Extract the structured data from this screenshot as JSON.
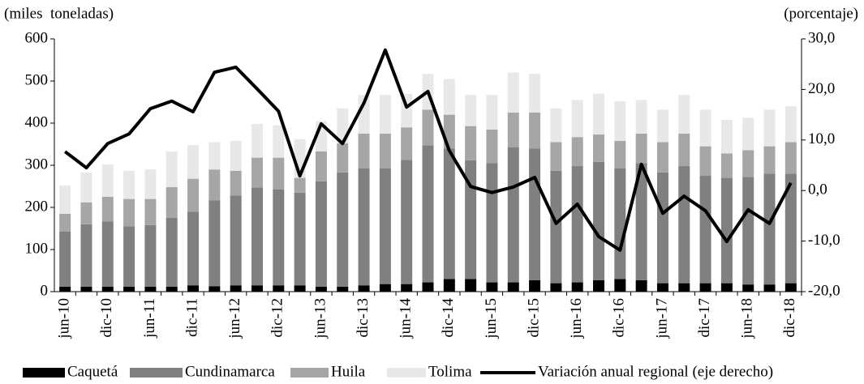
{
  "chart_data": {
    "type": "stacked-bar-line",
    "y_label": "(miles  toneladas)",
    "y2_label": "(porcentaje)",
    "categories": [
      "jun-10",
      null,
      "dic-10",
      null,
      "jun-11",
      null,
      "dic-11",
      null,
      "jun-12",
      null,
      "dic-12",
      null,
      "jun-13",
      null,
      "dic-13",
      null,
      "jun-14",
      null,
      "dic-14",
      null,
      "jun-15",
      null,
      "dic-15",
      null,
      "jun-16",
      null,
      "dic-16",
      null,
      "jun-17",
      null,
      "dic-17",
      null,
      "jun-18",
      null,
      "dic-18"
    ],
    "series": [
      {
        "name": "Caquetá",
        "color": "#000000",
        "values": [
          12,
          12,
          12,
          12,
          12,
          12,
          15,
          13,
          15,
          15,
          15,
          15,
          12,
          12,
          15,
          18,
          18,
          22,
          30,
          30,
          22,
          22,
          27,
          20,
          22,
          27,
          30,
          27,
          20,
          20,
          20,
          20,
          17,
          17,
          20
        ]
      },
      {
        "name": "Cundinamarca",
        "color": "#808080",
        "values": [
          131,
          148,
          155,
          143,
          146,
          163,
          175,
          204,
          213,
          232,
          228,
          220,
          250,
          271,
          278,
          275,
          295,
          325,
          310,
          282,
          283,
          321,
          313,
          267,
          276,
          281,
          263,
          278,
          263,
          278,
          255,
          250,
          255,
          263,
          260
        ]
      },
      {
        "name": "Huila",
        "color": "#a6a6a6",
        "values": [
          42,
          52,
          58,
          65,
          62,
          73,
          78,
          73,
          59,
          71,
          75,
          35,
          71,
          69,
          82,
          82,
          77,
          85,
          80,
          81,
          80,
          82,
          85,
          68,
          69,
          65,
          65,
          70,
          72,
          77,
          70,
          58,
          64,
          65,
          75
        ]
      },
      {
        "name": "Tolima",
        "color": "#e8e8e8",
        "values": [
          67,
          71,
          77,
          67,
          70,
          85,
          80,
          65,
          71,
          80,
          77,
          92,
          72,
          83,
          92,
          92,
          80,
          85,
          85,
          74,
          82,
          95,
          92,
          80,
          88,
          97,
          94,
          80,
          77,
          92,
          87,
          80,
          77,
          87,
          85
        ]
      },
      {
        "name": "Variación anual regional (eje derecho)",
        "color": "#000000",
        "axis": "y2",
        "values": [
          7.7,
          4.5,
          9.3,
          11.2,
          16.2,
          17.7,
          15.6,
          23.4,
          24.4,
          20.1,
          15.7,
          2.9,
          13.2,
          9.3,
          17.3,
          27.8,
          16.5,
          19.6,
          7.9,
          0.8,
          -0.4,
          0.7,
          2.6,
          -6.5,
          -2.7,
          -9.1,
          -11.8,
          5.2,
          -4.5,
          -1.1,
          -4.0,
          -10.1,
          -3.8,
          -6.5,
          1.5
        ]
      }
    ],
    "ylim": [
      0,
      600
    ],
    "yticks": [
      0,
      100,
      200,
      300,
      400,
      500,
      600
    ],
    "y2lim": [
      -20,
      30
    ],
    "y2ticks": [
      {
        "value": -20,
        "label": "-20,0"
      },
      {
        "value": -10,
        "label": "-10,0"
      },
      {
        "value": 0,
        "label": "0,0"
      },
      {
        "value": 10,
        "label": "10,0"
      },
      {
        "value": 20,
        "label": "20,0"
      },
      {
        "value": 30,
        "label": "30,0"
      }
    ],
    "grid": false,
    "legend": "bottom"
  }
}
